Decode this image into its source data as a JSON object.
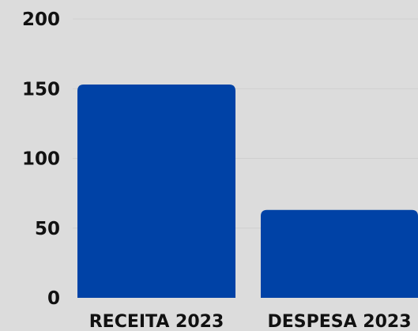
{
  "colors": {
    "background": "#dcdcdc",
    "bar": "#0042a6",
    "text": "#111111",
    "grid": "#cfcfcf"
  },
  "chart_data": {
    "type": "bar",
    "categories": [
      "RECEITA 2023",
      "DESPESA 2023"
    ],
    "values": [
      153,
      63
    ],
    "title": "",
    "xlabel": "",
    "ylabel": "",
    "ylim": [
      0,
      200
    ],
    "yticks": [
      0,
      50,
      100,
      150,
      200
    ],
    "ytick_labels": [
      "0",
      "50",
      "100",
      "150",
      "200"
    ],
    "grid": true,
    "legend": "none"
  }
}
